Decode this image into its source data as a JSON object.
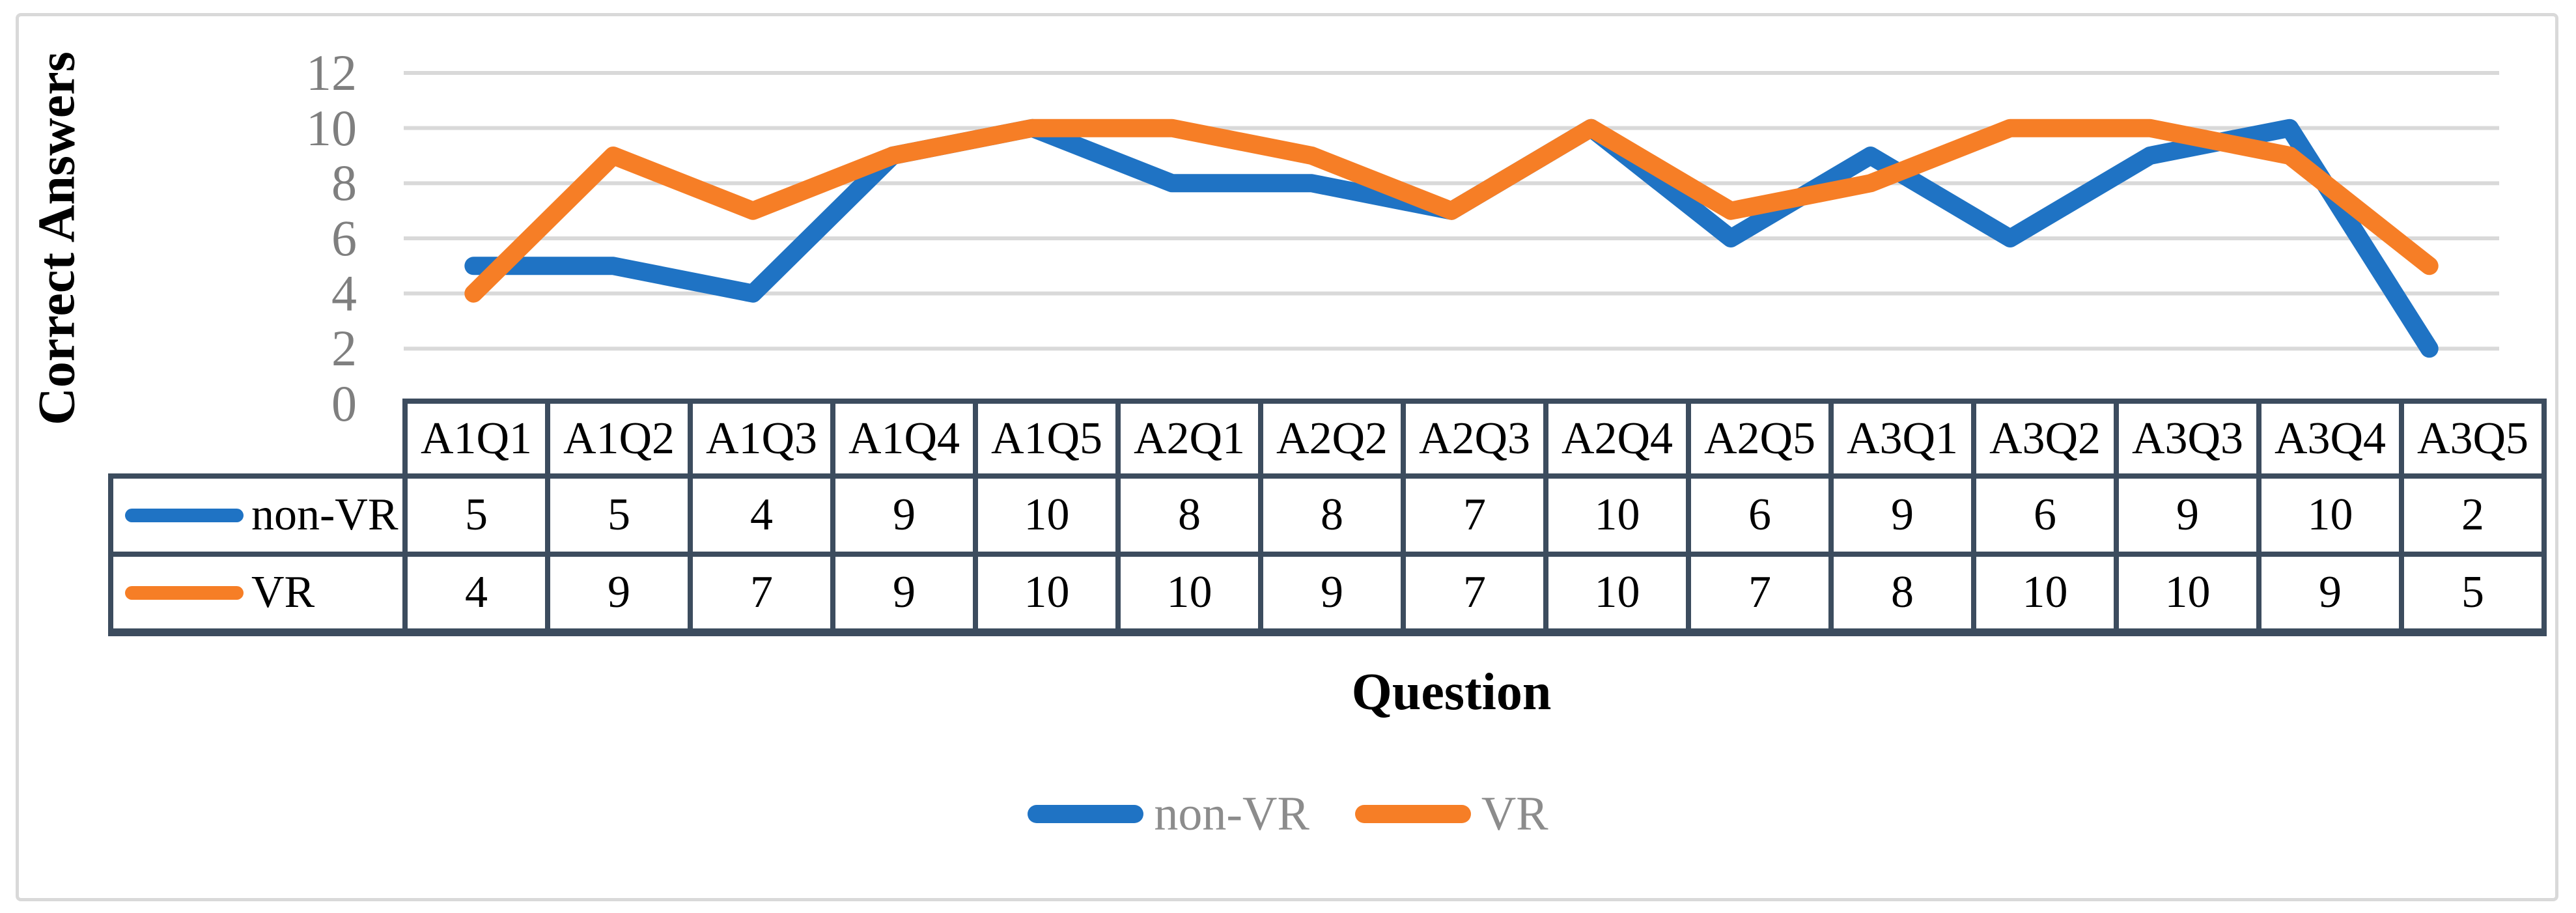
{
  "figure": {
    "y_axis_title": "Correct Answers",
    "x_axis_title": "Question"
  },
  "chart_data": {
    "type": "line",
    "title": "",
    "xlabel": "Question",
    "ylabel": "Correct Answers",
    "categories": [
      "A1Q1",
      "A1Q2",
      "A1Q3",
      "A1Q4",
      "A1Q5",
      "A2Q1",
      "A2Q2",
      "A2Q3",
      "A2Q4",
      "A2Q5",
      "A3Q1",
      "A3Q2",
      "A3Q3",
      "A3Q4",
      "A3Q5"
    ],
    "series": [
      {
        "name": "non-VR",
        "color": "#1F73C4",
        "values": [
          5,
          5,
          4,
          9,
          10,
          8,
          8,
          7,
          10,
          6,
          9,
          6,
          9,
          10,
          2
        ]
      },
      {
        "name": "VR",
        "color": "#F67E26",
        "values": [
          4,
          9,
          7,
          9,
          10,
          10,
          9,
          7,
          10,
          7,
          8,
          10,
          10,
          9,
          5
        ]
      }
    ],
    "ylim": [
      0,
      12
    ],
    "yticks": [
      0,
      2,
      4,
      6,
      8,
      10,
      12
    ],
    "grid": true,
    "legend_position": "bottom",
    "data_table_shown": true
  },
  "colors": {
    "gridline": "#D9D9D9",
    "tick_label": "#7F7F7F",
    "table_border": "#3C4C5E",
    "table_text": "#000000",
    "legend_text": "#8C8C8C",
    "figure_border": "#D9D9D9",
    "background": "#FFFFFF"
  }
}
